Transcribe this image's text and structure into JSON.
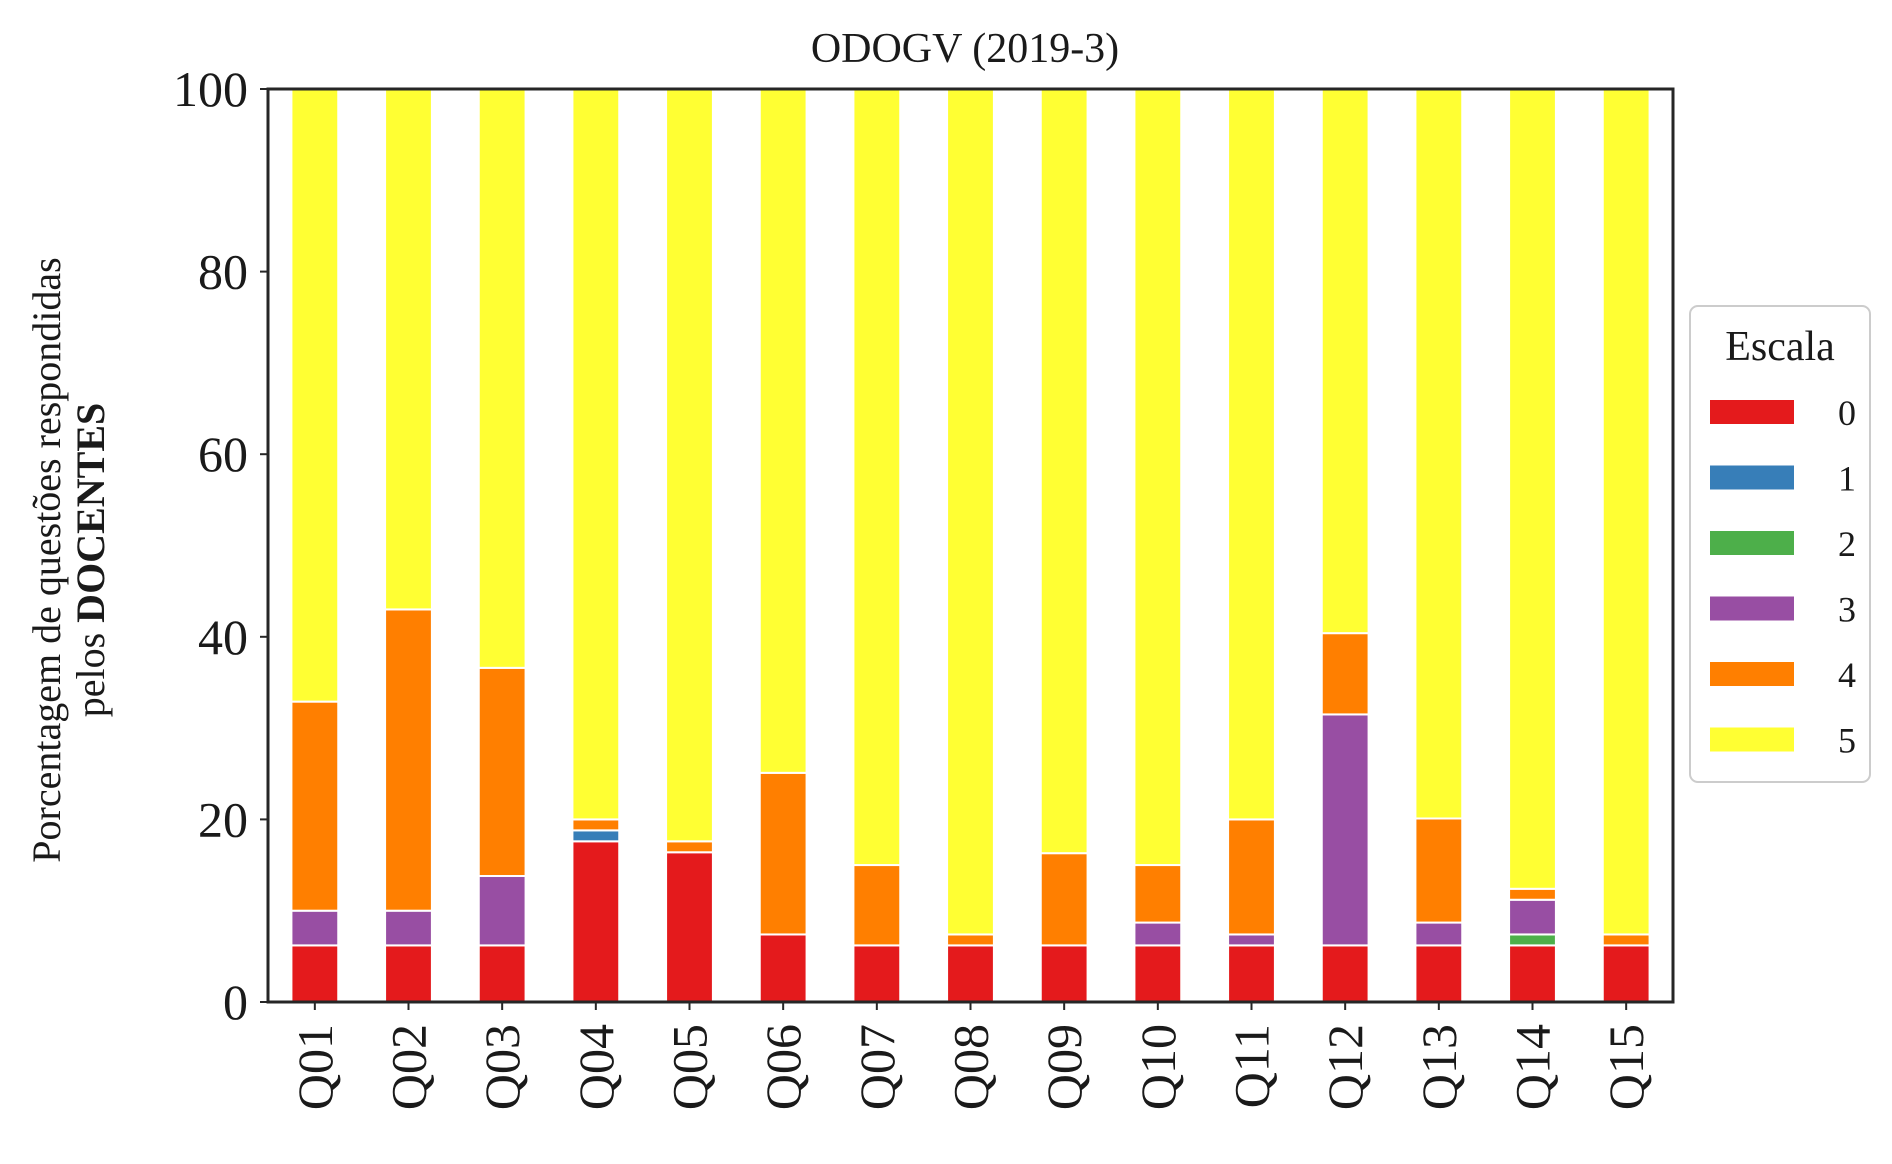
{
  "chart_data": {
    "type": "bar",
    "stacked": true,
    "title": "ODOGV (2019-3)",
    "ylabel_line1": "Porcentagem de questões respondidas",
    "ylabel_line2_prefix": "pelos",
    "ylabel_line2_bold": "DOCENTES",
    "xlabel": "",
    "ylim": [
      0,
      100
    ],
    "yticks": [
      "0",
      "20",
      "40",
      "60",
      "80",
      "100"
    ],
    "grid": false,
    "legend": {
      "title": "Escala",
      "placement": "right"
    },
    "categories": [
      "Q01",
      "Q02",
      "Q03",
      "Q04",
      "Q05",
      "Q06",
      "Q07",
      "Q08",
      "Q09",
      "Q10",
      "Q11",
      "Q12",
      "Q13",
      "Q14",
      "Q15"
    ],
    "series": [
      {
        "name": "0",
        "color": "#e41a1c",
        "values": [
          6.2,
          6.2,
          6.2,
          17.6,
          16.4,
          7.4,
          6.2,
          6.2,
          6.2,
          6.2,
          6.2,
          6.2,
          6.2,
          6.2,
          6.2
        ]
      },
      {
        "name": "1",
        "color": "#377eb8",
        "values": [
          0,
          0,
          0,
          1.2,
          0,
          0,
          0,
          0,
          0,
          0,
          0,
          0,
          0,
          0,
          0
        ]
      },
      {
        "name": "2",
        "color": "#4daf4a",
        "values": [
          0,
          0,
          0,
          0,
          0,
          0,
          0,
          0,
          0,
          0,
          0,
          0,
          0,
          1.2,
          0
        ]
      },
      {
        "name": "3",
        "color": "#984ea3",
        "values": [
          3.8,
          3.8,
          7.6,
          0,
          0,
          0,
          0,
          0,
          0,
          2.5,
          1.2,
          25.3,
          2.5,
          3.8,
          0
        ]
      },
      {
        "name": "4",
        "color": "#ff7f00",
        "values": [
          22.9,
          33.0,
          22.8,
          1.2,
          1.2,
          17.7,
          8.8,
          1.2,
          10.1,
          6.3,
          12.6,
          8.9,
          11.4,
          1.2,
          1.2
        ]
      },
      {
        "name": "5",
        "color": "#ffff33",
        "values": [
          67.1,
          57.0,
          63.4,
          80.0,
          82.4,
          74.9,
          85.0,
          92.6,
          83.7,
          85.0,
          80.0,
          59.6,
          79.9,
          87.6,
          92.6
        ]
      }
    ]
  }
}
